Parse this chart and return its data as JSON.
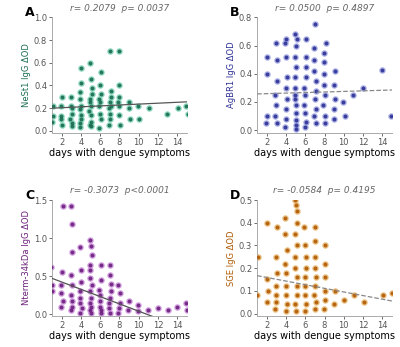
{
  "panel_A": {
    "label": "A",
    "ylabel": "NeSt1 IgG ΔOD",
    "xlabel": "days with dengue symptoms",
    "annotation": "r= 0.2079  p= 0.0037",
    "ylim": [
      -0.02,
      1.0
    ],
    "xlim": [
      1,
      15
    ],
    "yticks": [
      0.0,
      0.2,
      0.4,
      0.6,
      0.8,
      1.0
    ],
    "xticks": [
      2,
      4,
      6,
      8,
      10,
      12,
      14
    ],
    "line_slope": 0.004,
    "line_intercept": 0.195,
    "line_xstart": 1,
    "line_xend": 15,
    "line_style": "solid",
    "color_dark": "#1a6b52",
    "color_mid": "#2e9e7a",
    "color_light": "#7dd4b5",
    "x": [
      1,
      1,
      1,
      2,
      2,
      2,
      2,
      2,
      3,
      3,
      3,
      3,
      3,
      3,
      3,
      4,
      4,
      4,
      4,
      4,
      4,
      4,
      4,
      4,
      4,
      5,
      5,
      5,
      5,
      5,
      5,
      5,
      5,
      5,
      5,
      5,
      5,
      6,
      6,
      6,
      6,
      6,
      6,
      6,
      6,
      6,
      7,
      7,
      7,
      7,
      7,
      7,
      7,
      7,
      7,
      8,
      8,
      8,
      8,
      8,
      8,
      8,
      9,
      9,
      9,
      10,
      10,
      11,
      13,
      14,
      15,
      15
    ],
    "y": [
      0.08,
      0.13,
      0.22,
      0.05,
      0.1,
      0.13,
      0.22,
      0.3,
      0.04,
      0.07,
      0.1,
      0.15,
      0.2,
      0.22,
      0.3,
      0.03,
      0.07,
      0.1,
      0.14,
      0.19,
      0.22,
      0.28,
      0.34,
      0.42,
      0.55,
      0.04,
      0.05,
      0.08,
      0.14,
      0.17,
      0.22,
      0.25,
      0.28,
      0.32,
      0.38,
      0.46,
      0.6,
      0.02,
      0.1,
      0.15,
      0.22,
      0.25,
      0.28,
      0.32,
      0.4,
      0.52,
      0.05,
      0.1,
      0.15,
      0.2,
      0.22,
      0.25,
      0.3,
      0.35,
      0.7,
      0.05,
      0.14,
      0.22,
      0.25,
      0.3,
      0.4,
      0.7,
      0.1,
      0.2,
      0.25,
      0.1,
      0.22,
      0.2,
      0.15,
      0.2,
      0.15,
      0.22
    ]
  },
  "panel_B": {
    "label": "B",
    "ylabel": "AgBR1 IgG ΔOD",
    "xlabel": "days with dengue symptoms",
    "annotation": "r= 0.0500  p= 0.4897",
    "ylim": [
      -0.02,
      0.8
    ],
    "xlim": [
      1,
      15
    ],
    "yticks": [
      0.0,
      0.2,
      0.4,
      0.6,
      0.8
    ],
    "xticks": [
      2,
      4,
      6,
      8,
      10,
      12,
      14
    ],
    "line_slope": 0.002,
    "line_intercept": 0.255,
    "line_xstart": 1,
    "line_xend": 15,
    "line_style": "dashed",
    "color_dark": "#2d3196",
    "color_mid": "#4a4fcc",
    "color_light": "#9fa5e0",
    "x": [
      2,
      2,
      2,
      2,
      3,
      3,
      3,
      3,
      3,
      3,
      3,
      4,
      4,
      4,
      4,
      4,
      4,
      4,
      4,
      4,
      5,
      5,
      5,
      5,
      5,
      5,
      5,
      5,
      5,
      5,
      5,
      5,
      5,
      5,
      6,
      6,
      6,
      6,
      6,
      6,
      6,
      6,
      6,
      6,
      7,
      7,
      7,
      7,
      7,
      7,
      7,
      7,
      7,
      7,
      8,
      8,
      8,
      8,
      8,
      8,
      8,
      8,
      8,
      9,
      9,
      9,
      9,
      9,
      10,
      10,
      11,
      12,
      14,
      15
    ],
    "y": [
      0.05,
      0.1,
      0.4,
      0.52,
      0.05,
      0.1,
      0.18,
      0.25,
      0.35,
      0.5,
      0.62,
      0.02,
      0.08,
      0.15,
      0.22,
      0.3,
      0.38,
      0.52,
      0.62,
      0.65,
      0.01,
      0.04,
      0.07,
      0.12,
      0.18,
      0.22,
      0.25,
      0.3,
      0.38,
      0.45,
      0.52,
      0.6,
      0.65,
      0.68,
      0.02,
      0.06,
      0.12,
      0.18,
      0.25,
      0.3,
      0.38,
      0.45,
      0.52,
      0.65,
      0.05,
      0.1,
      0.15,
      0.22,
      0.28,
      0.35,
      0.42,
      0.5,
      0.58,
      0.75,
      0.05,
      0.1,
      0.18,
      0.25,
      0.32,
      0.4,
      0.48,
      0.55,
      0.62,
      0.08,
      0.15,
      0.22,
      0.32,
      0.42,
      0.1,
      0.2,
      0.25,
      0.3,
      0.43,
      0.1
    ]
  },
  "panel_C": {
    "label": "C",
    "ylabel": "Nterm-34kDa IgG ΔOD",
    "xlabel": "days with dengue symptoms",
    "annotation": "r= -0.3073  p<0.0001",
    "ylim": [
      -0.02,
      1.5
    ],
    "xlim": [
      1,
      15
    ],
    "yticks": [
      0.0,
      0.5,
      1.0,
      1.5
    ],
    "xticks": [
      2,
      4,
      6,
      8,
      10,
      12,
      14
    ],
    "line_slope": -0.048,
    "line_intercept": 0.52,
    "line_xstart": 1,
    "line_xend": 15,
    "line_style": "solid",
    "color_dark": "#6b1f7c",
    "color_mid": "#9e38b8",
    "color_light": "#cc8fdb",
    "x": [
      1,
      1,
      1,
      2,
      2,
      2,
      2,
      2,
      2,
      3,
      3,
      3,
      3,
      3,
      3,
      3,
      3,
      3,
      4,
      4,
      4,
      4,
      4,
      4,
      4,
      4,
      5,
      5,
      5,
      5,
      5,
      5,
      5,
      5,
      5,
      5,
      5,
      5,
      5,
      6,
      6,
      6,
      6,
      6,
      6,
      6,
      6,
      7,
      7,
      7,
      7,
      7,
      7,
      7,
      7,
      8,
      8,
      8,
      8,
      8,
      9,
      9,
      10,
      10,
      11,
      12,
      13,
      14,
      15,
      15
    ],
    "y": [
      0.3,
      0.38,
      0.62,
      0.1,
      0.18,
      0.28,
      0.38,
      0.55,
      1.42,
      0.05,
      0.1,
      0.18,
      0.25,
      0.38,
      0.52,
      0.82,
      1.18,
      1.42,
      0.02,
      0.08,
      0.15,
      0.22,
      0.3,
      0.42,
      0.58,
      0.88,
      0.02,
      0.05,
      0.1,
      0.15,
      0.22,
      0.3,
      0.38,
      0.48,
      0.58,
      0.65,
      0.78,
      0.9,
      0.98,
      0.01,
      0.05,
      0.1,
      0.18,
      0.25,
      0.32,
      0.45,
      0.65,
      0.02,
      0.08,
      0.15,
      0.22,
      0.3,
      0.4,
      0.52,
      0.65,
      0.02,
      0.08,
      0.15,
      0.28,
      0.38,
      0.05,
      0.18,
      0.04,
      0.12,
      0.05,
      0.08,
      0.05,
      0.1,
      0.05,
      0.15
    ]
  },
  "panel_D": {
    "label": "D",
    "ylabel": "SGE IgG ΔOD",
    "xlabel": "days with dengue symptoms",
    "annotation": "r= -0.0584  p= 0.4195",
    "ylim": [
      -0.01,
      0.5
    ],
    "xlim": [
      1,
      15
    ],
    "yticks": [
      0.0,
      0.1,
      0.2,
      0.3,
      0.4,
      0.5
    ],
    "xticks": [
      2,
      4,
      6,
      8,
      10,
      12,
      14
    ],
    "line_slope": -0.008,
    "line_intercept": 0.175,
    "line_xstart": 1,
    "line_xend": 15,
    "line_style": "dashed",
    "color_dark": "#b05a05",
    "color_mid": "#d4820a",
    "color_light": "#e8b870",
    "x": [
      1,
      1,
      2,
      2,
      2,
      2,
      3,
      3,
      3,
      3,
      3,
      3,
      3,
      4,
      4,
      4,
      4,
      4,
      4,
      4,
      4,
      4,
      5,
      5,
      5,
      5,
      5,
      5,
      5,
      5,
      5,
      5,
      5,
      5,
      5,
      6,
      6,
      6,
      6,
      6,
      6,
      6,
      6,
      6,
      7,
      7,
      7,
      7,
      7,
      7,
      7,
      7,
      7,
      8,
      8,
      8,
      8,
      8,
      8,
      9,
      9,
      10,
      11,
      12,
      14,
      15
    ],
    "y": [
      0.08,
      0.25,
      0.05,
      0.1,
      0.15,
      0.4,
      0.02,
      0.05,
      0.08,
      0.12,
      0.18,
      0.25,
      0.38,
      0.01,
      0.04,
      0.08,
      0.12,
      0.18,
      0.22,
      0.28,
      0.35,
      0.42,
      0.01,
      0.04,
      0.08,
      0.12,
      0.16,
      0.2,
      0.25,
      0.3,
      0.35,
      0.4,
      0.45,
      0.48,
      0.5,
      0.01,
      0.04,
      0.08,
      0.12,
      0.16,
      0.2,
      0.25,
      0.3,
      0.38,
      0.02,
      0.05,
      0.08,
      0.12,
      0.16,
      0.2,
      0.25,
      0.32,
      0.38,
      0.02,
      0.06,
      0.1,
      0.16,
      0.22,
      0.3,
      0.04,
      0.1,
      0.06,
      0.08,
      0.05,
      0.08,
      0.09
    ]
  },
  "bg_color": "#ffffff",
  "annotation_color": "#666666",
  "annotation_fontsize": 6.5,
  "ylabel_fontsize": 6,
  "xlabel_fontsize": 7,
  "tick_fontsize": 6,
  "label_fontsize": 9
}
